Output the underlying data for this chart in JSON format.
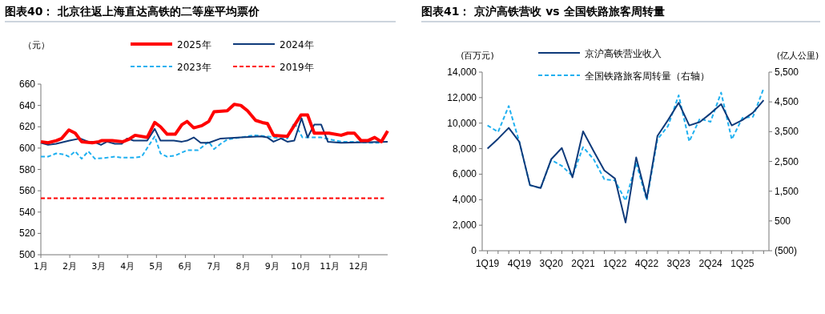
{
  "chart_data": [
    {
      "type": "line",
      "title": "图表40：  北京往返上海直达高铁的二等座平均票价",
      "ylabel": "（元）",
      "legend": "top",
      "xlim": [
        1,
        13
      ],
      "xticks": [
        {
          "value": 1,
          "label": "1月"
        },
        {
          "value": 2,
          "label": "2月"
        },
        {
          "value": 3,
          "label": "3月"
        },
        {
          "value": 4,
          "label": "4月"
        },
        {
          "value": 5,
          "label": "5月"
        },
        {
          "value": 6,
          "label": "6月"
        },
        {
          "value": 7,
          "label": "7月"
        },
        {
          "value": 8,
          "label": "8月"
        },
        {
          "value": 9,
          "label": "9月"
        },
        {
          "value": 10,
          "label": "10月"
        },
        {
          "value": 11,
          "label": "11月"
        },
        {
          "value": 12,
          "label": "12月"
        }
      ],
      "ylim": [
        500,
        660
      ],
      "yticks": [
        500,
        520,
        540,
        560,
        580,
        600,
        620,
        640,
        660
      ],
      "series": [
        {
          "name": "2025年",
          "color": "#ff0000",
          "line_style": "solid",
          "x": [
            1,
            1.25,
            1.53,
            1.72,
            1.97,
            2.19,
            2.41,
            2.78,
            3.01,
            3.1,
            3.47,
            3.84,
            4.03,
            4.26,
            4.68,
            4.94,
            5.14,
            5.37,
            5.65,
            5.88,
            6.06,
            6.29,
            6.57,
            6.81,
            6.99,
            7.45,
            7.69,
            7.92,
            8.15,
            8.43,
            8.66,
            8.84,
            9.05,
            9.53,
            10.0,
            10.23,
            10.46,
            10.97,
            11.39,
            11.62,
            11.85,
            12.08,
            12.31,
            12.55,
            12.78,
            13
          ],
          "values": [
            606,
            605,
            607,
            609,
            617,
            614,
            606,
            605,
            606,
            607,
            607,
            606,
            608,
            612,
            610,
            624,
            620,
            613,
            613,
            622,
            625,
            619,
            621,
            625,
            634,
            635,
            641,
            640,
            635,
            626,
            624,
            623,
            612,
            611,
            631,
            631,
            614,
            614,
            612,
            614,
            614,
            607,
            607,
            610,
            606,
            616
          ]
        },
        {
          "name": "2024年",
          "color": "#0e3a7a",
          "line_style": "solid",
          "x": [
            1,
            1.25,
            1.53,
            1.99,
            2.36,
            2.64,
            2.82,
            3.08,
            3.29,
            3.56,
            3.8,
            3.98,
            4.21,
            4.68,
            4.94,
            5.14,
            5.6,
            5.88,
            6.06,
            6.29,
            6.53,
            6.81,
            7.22,
            7.92,
            8.61,
            8.84,
            9.05,
            9.31,
            9.53,
            9.77,
            10.02,
            10.23,
            10.46,
            10.7,
            10.93,
            11.39,
            13
          ],
          "values": [
            605,
            603,
            604,
            607,
            609,
            606,
            606,
            603,
            606,
            604,
            604,
            609,
            607,
            607,
            618,
            607,
            607,
            606,
            607,
            610,
            605,
            605,
            609,
            610,
            611,
            610,
            606,
            609,
            606,
            607,
            628,
            610,
            622,
            622,
            606,
            605,
            606
          ]
        },
        {
          "name": "2023年",
          "color": "#1fb0f0",
          "line_style": "dashed",
          "x": [
            1,
            1.25,
            1.53,
            1.81,
            1.97,
            2.19,
            2.41,
            2.64,
            2.87,
            3.29,
            3.56,
            3.8,
            4.21,
            4.49,
            4.94,
            5.14,
            5.37,
            5.65,
            6.06,
            6.44,
            6.81,
            6.99,
            7.22,
            7.45,
            7.92,
            8.38,
            8.84,
            9.31,
            9.53,
            9.77,
            10.05,
            10.23,
            10.69,
            11.39,
            11.85,
            12.31,
            12.78,
            13
          ],
          "values": [
            592,
            592,
            595,
            594,
            592,
            597,
            590,
            597,
            590,
            591,
            592,
            591,
            591,
            592,
            611,
            595,
            592,
            593,
            598,
            598,
            606,
            599,
            604,
            608,
            610,
            612,
            611,
            609,
            609,
            624,
            610,
            610,
            610,
            606,
            606,
            605,
            605,
            615
          ]
        },
        {
          "name": "2019年",
          "color": "#ff0000",
          "line_style": "dashed",
          "x": [
            1,
            12.87
          ],
          "values": [
            553,
            553
          ]
        }
      ]
    },
    {
      "type": "line",
      "title": "图表41：  京沪高铁营收 vs 全国铁路旅客周转量",
      "ylabel": "(百万元)",
      "y2label": "(亿人公里)",
      "legend": "top",
      "categories": [
        "1Q19",
        null,
        null,
        "4Q19",
        null,
        null,
        "3Q20",
        null,
        null,
        "2Q21",
        null,
        null,
        "1Q22",
        null,
        null,
        "4Q22",
        null,
        null,
        "3Q23",
        null,
        null,
        "2Q24",
        null,
        null,
        "1Q25",
        null,
        null
      ],
      "ylim": [
        0,
        14000
      ],
      "yticks": [
        0,
        {
          "value": 2000,
          "label": "2,000"
        },
        {
          "value": 4000,
          "label": "4,000"
        },
        {
          "value": 6000,
          "label": "6,000"
        },
        {
          "value": 8000,
          "label": "8,000"
        },
        {
          "value": 10000,
          "label": "10,000"
        },
        {
          "value": 12000,
          "label": "12,000"
        },
        {
          "value": 14000,
          "label": "14,000"
        }
      ],
      "y2lim": [
        -500,
        5500
      ],
      "y2ticks": [
        {
          "value": -500,
          "label": "(500)"
        },
        500,
        {
          "value": 1500,
          "label": "1,500"
        },
        {
          "value": 2500,
          "label": "2,500"
        },
        {
          "value": 3500,
          "label": "3,500"
        },
        {
          "value": 4500,
          "label": "4,500"
        },
        {
          "value": 5500,
          "label": "5,500"
        }
      ],
      "series": [
        {
          "name": "京沪高铁营业收入",
          "color": "#0e3a7a",
          "line_style": "solid",
          "values": [
            8000,
            8780,
            9630,
            8530,
            5140,
            4910,
            7170,
            8050,
            5750,
            9360,
            7800,
            6290,
            5660,
            2210,
            7310,
            4100,
            8990,
            10240,
            11600,
            9820,
            10090,
            10760,
            11490,
            9820,
            10240,
            10820,
            11800
          ]
        },
        {
          "name": "全国铁路旅客周转量（右轴）",
          "color": "#1fb0f0",
          "line_style": "dashed",
          "axis": "y2",
          "values": [
            3710,
            3490,
            4360,
            3150,
            1700,
            1600,
            2550,
            2350,
            2010,
            2980,
            2570,
            1900,
            1860,
            1180,
            2450,
            1200,
            3240,
            3690,
            4720,
            3170,
            3940,
            3830,
            4810,
            3240,
            3960,
            4000,
            4950
          ]
        }
      ]
    }
  ]
}
